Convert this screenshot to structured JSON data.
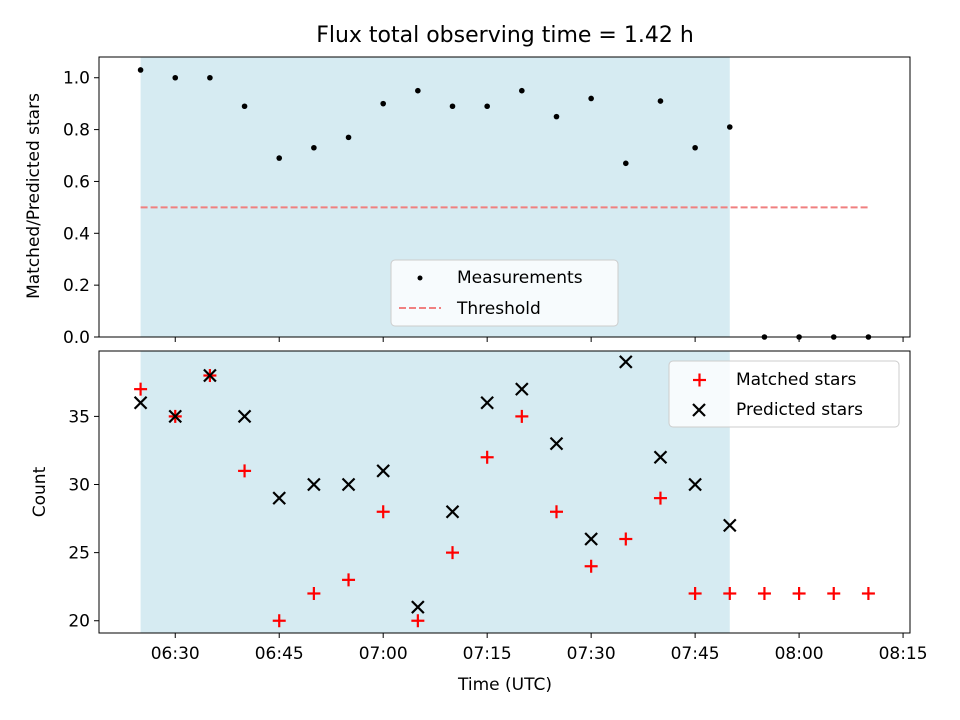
{
  "figure": {
    "title": "Flux total observing time = 1.42 h",
    "xlabel": "Time (UTC)",
    "x_ticks": [
      "06:30",
      "06:45",
      "07:00",
      "07:15",
      "07:30",
      "07:45",
      "08:00",
      "08:15"
    ]
  },
  "chart_data": [
    {
      "type": "scatter",
      "title": "Flux total observing time = 1.42 h",
      "xlabel": "",
      "ylabel": "Matched/Predicted stars",
      "ylim": [
        0,
        1.08
      ],
      "y_ticks": [
        "0.0",
        "0.2",
        "0.4",
        "0.6",
        "0.8",
        "1.0"
      ],
      "xlim": [
        "06:19",
        "08:16"
      ],
      "grid": false,
      "legend": "lower-center",
      "shaded_span": {
        "from": "06:25",
        "to": "07:50",
        "color": "#add8e6"
      },
      "series": [
        {
          "name": "Measurements",
          "marker": "dot",
          "color": "#000000",
          "x": [
            "06:25",
            "06:30",
            "06:35",
            "06:40",
            "06:45",
            "06:50",
            "06:55",
            "07:00",
            "07:05",
            "07:10",
            "07:15",
            "07:20",
            "07:25",
            "07:30",
            "07:35",
            "07:40",
            "07:45",
            "07:50",
            "07:55",
            "08:00",
            "08:05",
            "08:10"
          ],
          "y": [
            1.03,
            1.0,
            1.0,
            0.89,
            0.69,
            0.73,
            0.77,
            0.9,
            0.95,
            0.89,
            0.89,
            0.95,
            0.85,
            0.92,
            0.67,
            0.91,
            0.73,
            0.81,
            0.0,
            0.0,
            0.0,
            0.0
          ]
        },
        {
          "name": "Threshold",
          "marker": "dashed-line",
          "color": "#f08080",
          "x": [
            "06:25",
            "08:10"
          ],
          "y": [
            0.5,
            0.5
          ]
        }
      ]
    },
    {
      "type": "scatter",
      "xlabel": "Time (UTC)",
      "ylabel": "Count",
      "ylim": [
        19.1,
        39.8
      ],
      "y_ticks": [
        "20",
        "25",
        "30",
        "35"
      ],
      "grid": false,
      "legend": "upper-right",
      "series": [
        {
          "name": "Matched stars",
          "marker": "plus",
          "color": "#ff0000",
          "x": [
            "06:25",
            "06:30",
            "06:35",
            "06:40",
            "06:45",
            "06:50",
            "06:55",
            "07:00",
            "07:05",
            "07:10",
            "07:15",
            "07:20",
            "07:25",
            "07:30",
            "07:35",
            "07:40",
            "07:45",
            "07:50",
            "07:55",
            "08:00",
            "08:05",
            "08:10"
          ],
          "y": [
            37,
            35,
            38,
            31,
            20,
            22,
            23,
            28,
            20,
            25,
            32,
            35,
            28,
            24,
            26,
            29,
            22,
            22,
            22,
            22,
            22,
            22
          ]
        },
        {
          "name": "Predicted stars",
          "marker": "x",
          "color": "#000000",
          "x": [
            "06:25",
            "06:30",
            "06:35",
            "06:40",
            "06:45",
            "06:50",
            "06:55",
            "07:00",
            "07:05",
            "07:10",
            "07:15",
            "07:20",
            "07:25",
            "07:30",
            "07:35",
            "07:40",
            "07:45",
            "07:50"
          ],
          "y": [
            36,
            35,
            38,
            35,
            29,
            30,
            30,
            31,
            21,
            28,
            36,
            37,
            33,
            26,
            39,
            32,
            30,
            27
          ]
        }
      ]
    }
  ]
}
